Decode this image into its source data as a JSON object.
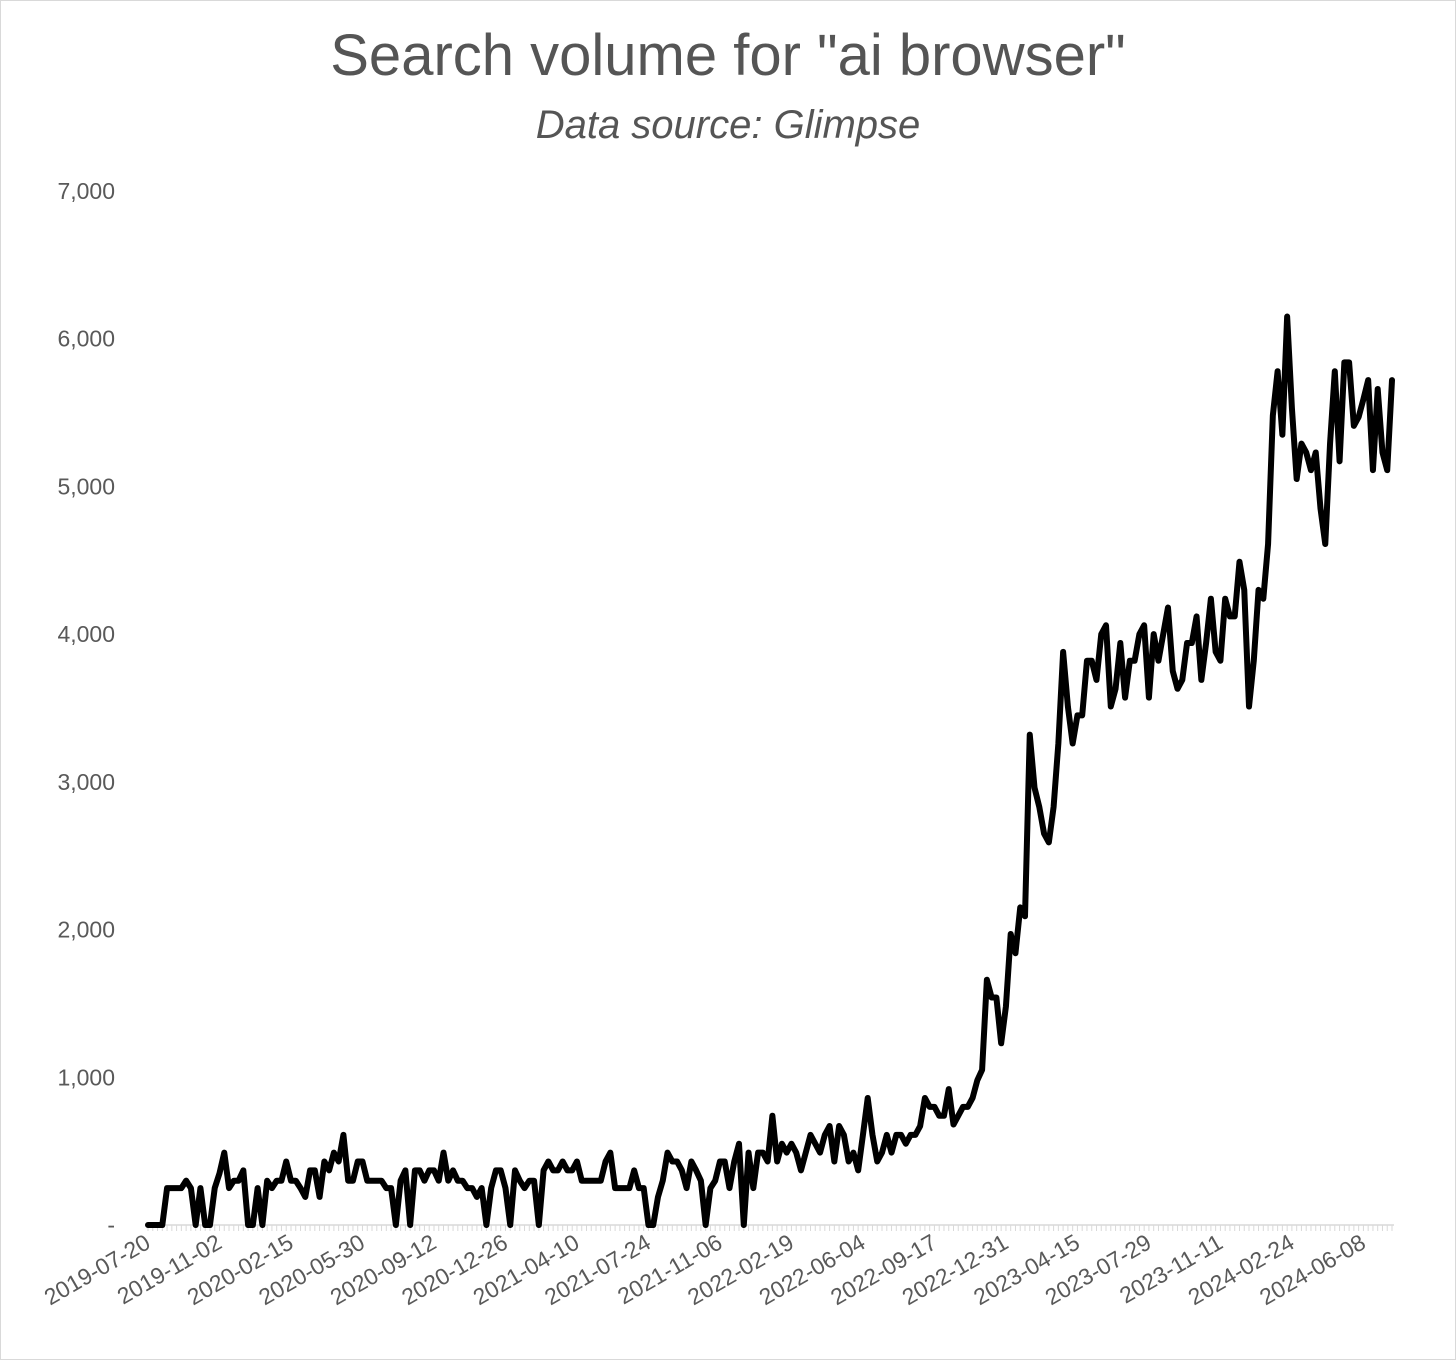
{
  "chart_data": {
    "type": "line",
    "title": "Search volume for \"ai browser\"",
    "subtitle": "Data source: Glimpse",
    "xlabel": "",
    "ylabel": "",
    "ylim": [
      0,
      7000
    ],
    "y_ticks": [
      {
        "value": 0,
        "label": "-"
      },
      {
        "value": 1000,
        "label": "1,000"
      },
      {
        "value": 2000,
        "label": "2,000"
      },
      {
        "value": 3000,
        "label": "3,000"
      },
      {
        "value": 4000,
        "label": "4,000"
      },
      {
        "value": 5000,
        "label": "5,000"
      },
      {
        "value": 6000,
        "label": "6,000"
      },
      {
        "value": 7000,
        "label": "7,000"
      }
    ],
    "x_tick_labels": [
      "2019-07-20",
      "2019-11-02",
      "2020-02-15",
      "2020-05-30",
      "2020-09-12",
      "2020-12-26",
      "2021-04-10",
      "2021-07-24",
      "2021-11-06",
      "2022-02-19",
      "2022-06-04",
      "2022-09-17",
      "2022-12-31",
      "2023-04-15",
      "2023-07-29",
      "2023-11-11",
      "2024-02-24",
      "2024-06-08"
    ],
    "grid": false,
    "legend": "none",
    "line_color": "#000000",
    "x_start": "2019-07-20",
    "x_step_days": 7,
    "values": [
      0,
      0,
      0,
      0,
      250,
      250,
      250,
      250,
      300,
      250,
      0,
      250,
      0,
      0,
      250,
      350,
      490,
      250,
      300,
      300,
      370,
      0,
      0,
      250,
      0,
      300,
      250,
      300,
      300,
      430,
      300,
      300,
      250,
      190,
      370,
      370,
      190,
      430,
      370,
      490,
      430,
      610,
      300,
      300,
      430,
      430,
      300,
      300,
      300,
      300,
      250,
      250,
      0,
      300,
      370,
      0,
      370,
      370,
      300,
      370,
      370,
      300,
      490,
      300,
      370,
      300,
      300,
      250,
      250,
      190,
      250,
      0,
      250,
      370,
      370,
      250,
      0,
      370,
      300,
      250,
      300,
      300,
      0,
      370,
      430,
      370,
      370,
      430,
      370,
      370,
      430,
      300,
      300,
      300,
      300,
      300,
      430,
      490,
      250,
      250,
      250,
      250,
      370,
      250,
      250,
      0,
      0,
      190,
      300,
      490,
      430,
      430,
      370,
      250,
      430,
      370,
      300,
      0,
      250,
      300,
      430,
      430,
      250,
      430,
      550,
      0,
      490,
      250,
      490,
      490,
      430,
      740,
      430,
      550,
      490,
      550,
      490,
      370,
      490,
      610,
      550,
      490,
      610,
      670,
      430,
      670,
      610,
      430,
      490,
      370,
      610,
      860,
      610,
      430,
      490,
      610,
      490,
      610,
      610,
      550,
      610,
      610,
      670,
      860,
      800,
      800,
      740,
      740,
      920,
      680,
      740,
      800,
      800,
      860,
      980,
      1050,
      1660,
      1540,
      1540,
      1230,
      1480,
      1970,
      1840,
      2150,
      2090,
      3320,
      2960,
      2830,
      2650,
      2590,
      2830,
      3260,
      3880,
      3510,
      3260,
      3450,
      3450,
      3820,
      3820,
      3690,
      4000,
      4060,
      3510,
      3630,
      3940,
      3570,
      3820,
      3820,
      4000,
      4060,
      3570,
      4000,
      3820,
      4000,
      4180,
      3750,
      3630,
      3690,
      3940,
      3940,
      4120,
      3690,
      3940,
      4240,
      3880,
      3820,
      4240,
      4120,
      4120,
      4490,
      4300,
      3510,
      3820,
      4300,
      4240,
      4610,
      5480,
      5780,
      5350,
      6150,
      5530,
      5050,
      5290,
      5230,
      5110,
      5230,
      4850,
      4610,
      5290,
      5780,
      5170,
      5840,
      5840,
      5410,
      5470,
      5590,
      5720,
      5110,
      5660,
      5230,
      5110,
      5720
    ]
  }
}
